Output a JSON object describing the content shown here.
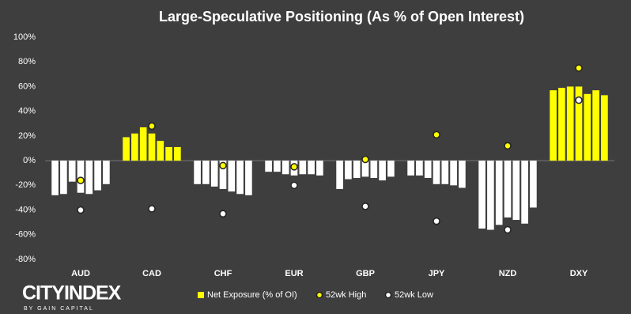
{
  "chart_data": {
    "type": "bar",
    "title": "Large-Speculative Positioning (As % of Open Interest)",
    "categories": [
      "AUD",
      "CAD",
      "CHF",
      "EUR",
      "GBP",
      "JPY",
      "NZD",
      "DXY"
    ],
    "series": [
      {
        "name": "Net Exposure (% of OI)",
        "color": "#ffff00",
        "negative_color": "#ffffff",
        "values": [
          [
            -28,
            -27,
            -17,
            -26,
            -27,
            -24,
            -19
          ],
          [
            19,
            22,
            27,
            22,
            16,
            11,
            11
          ],
          [
            -19,
            -19,
            -21,
            -23,
            -25,
            -27,
            -28
          ],
          [
            -9,
            -9,
            -11,
            -12,
            -11,
            -11,
            -12
          ],
          [
            -23,
            -15,
            -14,
            -13,
            -14,
            -16,
            -13
          ],
          [
            -12,
            -12,
            -14,
            -19,
            -19,
            -20,
            -22
          ],
          [
            -55,
            -56,
            -52,
            -46,
            -48,
            -51,
            -38
          ],
          [
            57,
            59,
            60,
            60,
            54,
            57,
            53
          ]
        ]
      },
      {
        "name": "52wk High",
        "type": "scatter",
        "color": "#ffff00",
        "values": [
          -16,
          28,
          -4,
          -5,
          1,
          21,
          12,
          75
        ]
      },
      {
        "name": "52wk Low",
        "type": "scatter",
        "color": "#ffffff",
        "values": [
          -40,
          -39,
          -43,
          -20,
          -37,
          -49,
          -56,
          49
        ]
      }
    ],
    "ylim": [
      -80,
      100
    ],
    "yticks": [
      {
        "value": -80,
        "label": "-80%"
      },
      {
        "value": -60,
        "label": "-60%"
      },
      {
        "value": -40,
        "label": "-40%"
      },
      {
        "value": -20,
        "label": "-20%"
      },
      {
        "value": 0,
        "label": "0%"
      },
      {
        "value": 20,
        "label": "20%"
      },
      {
        "value": 40,
        "label": "40%"
      },
      {
        "value": 60,
        "label": "60%"
      },
      {
        "value": 80,
        "label": "80%"
      },
      {
        "value": 100,
        "label": "100%"
      }
    ],
    "grid": false,
    "legend": "bottom"
  },
  "logo": {
    "name": "CITYINDEX",
    "tagline": "BY GAIN CAPITAL"
  }
}
